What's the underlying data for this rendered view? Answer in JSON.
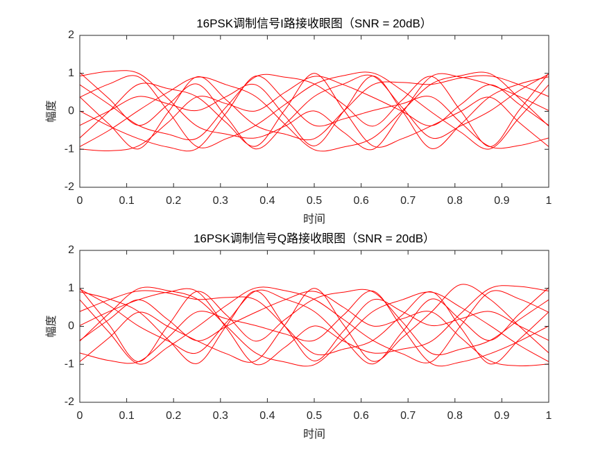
{
  "chart_data": [
    {
      "type": "line",
      "title": "16PSK调制信号I路接收眼图（SNR = 20dB）",
      "xlabel": "时间",
      "ylabel": "幅度",
      "color": "#ff0000",
      "xlim": [
        0,
        1
      ],
      "ylim": [
        -2,
        2
      ],
      "xticks": [
        0,
        0.1,
        0.2,
        0.3,
        0.4,
        0.5,
        0.6,
        0.7,
        0.8,
        0.9,
        1
      ],
      "yticks": [
        -2,
        -1,
        0,
        1,
        2
      ],
      "box": true,
      "x": [
        0,
        0.0625,
        0.125,
        0.1875,
        0.25,
        0.3125,
        0.375,
        0.4375,
        0.5,
        0.5625,
        0.625,
        0.6875,
        0.75,
        0.8125,
        0.875,
        0.9375,
        1
      ],
      "series": [
        {
          "values": [
            1.02,
            0.33,
            -0.37,
            0.17,
            0.72,
            -0.15,
            -0.99,
            -0.34,
            0.39,
            0.72,
            0.93,
            0.1,
            -0.7,
            -0.38,
            0.01,
            0.55,
            0.98
          ]
        },
        {
          "values": [
            -0.93,
            -0.5,
            0.02,
            0.5,
            0.9,
            0.7,
            0.39,
            -0.34,
            -1.01,
            -0.94,
            -0.7,
            0.01,
            0.72,
            0.94,
            0.99,
            0.34,
            -0.39
          ]
        },
        {
          "values": [
            0.37,
            0.72,
            0.91,
            0.02,
            -0.93,
            -0.72,
            -0.37,
            0.18,
            0.71,
            0.94,
            1.01,
            0.55,
            -0.02,
            -0.55,
            -0.99,
            -0.16,
            0.7
          ]
        },
        {
          "values": [
            0.01,
            -0.39,
            -0.72,
            -0.94,
            -0.98,
            -0.04,
            0.93,
            0.3,
            -0.37,
            -0.2,
            0.02,
            0.2,
            0.38,
            -0.3,
            -0.93,
            -0.9,
            -0.7
          ]
        },
        {
          "values": [
            -0.37,
            0.01,
            0.39,
            0.2,
            0.02,
            0.39,
            0.7,
            -0.12,
            -0.91,
            0,
            0.93,
            0.01,
            -0.98,
            -0.34,
            0.39,
            0.72,
            0.91
          ]
        },
        {
          "values": [
            0.93,
            1.05,
            1,
            0.34,
            -0.39,
            -0.6,
            -0.7,
            -0.39,
            0.01,
            -0.55,
            -1,
            -0.04,
            0.92,
            0.9,
            0.7,
            0.39,
            0.02
          ]
        },
        {
          "values": [
            -0.99,
            -1.04,
            -0.91,
            -0.3,
            0.38,
            0.2,
            0.01,
            0.5,
            0.92,
            0.7,
            0.37,
            0,
            -0.38,
            0.18,
            0.7,
            0.18,
            -0.37
          ]
        },
        {
          "values": [
            0.7,
            0.18,
            -0.37,
            -0.6,
            -0.71,
            0.12,
            0.91,
            0.9,
            0.72,
            0.18,
            -0.39,
            0.3,
            0.92,
            0.01,
            -0.93,
            0.04,
            1
          ]
        },
        {
          "values": [
            -0.7,
            0,
            0.71,
            0.6,
            0.38,
            -0.3,
            -0.92,
            0.04,
            1,
            0.04,
            -0.91,
            -0.72,
            -0.38,
            0,
            0.37,
            -0.3,
            -0.93
          ]
        },
        {
          "values": [
            0.38,
            -0.34,
            -0.99,
            -0.04,
            0.91,
            0.3,
            -0.37,
            -0.6,
            -0.72,
            0,
            0.7,
            0.76,
            0.71,
            0.88,
            0.93,
            0.7,
            0.39
          ]
        }
      ]
    },
    {
      "type": "line",
      "title": "16PSK调制信号Q路接收眼图（SNR = 20dB）",
      "xlabel": "时间",
      "ylabel": "幅度",
      "color": "#ff0000",
      "xlim": [
        0,
        1
      ],
      "ylim": [
        -2,
        2
      ],
      "xticks": [
        0,
        0.1,
        0.2,
        0.3,
        0.4,
        0.5,
        0.6,
        0.7,
        0.8,
        0.9,
        1
      ],
      "yticks": [
        -2,
        -1,
        0,
        1,
        2
      ],
      "box": true,
      "x": [
        0,
        0.0625,
        0.125,
        0.1875,
        0.25,
        0.3125,
        0.375,
        0.4375,
        0.5,
        0.5625,
        0.625,
        0.6875,
        0.75,
        0.8125,
        0.875,
        0.9375,
        1
      ],
      "series": [
        {
          "values": [
            0.98,
            0.55,
            0.01,
            -0.38,
            -0.7,
            0.1,
            0.93,
            0.72,
            0.39,
            -0.34,
            -0.99,
            -0.15,
            0.72,
            0.17,
            -0.37,
            0.33,
            1.02
          ]
        },
        {
          "values": [
            -0.39,
            0.34,
            0.99,
            0.94,
            0.72,
            0.01,
            -0.7,
            -0.94,
            -1.01,
            -0.34,
            0.39,
            0.7,
            0.9,
            0.5,
            0.02,
            -0.5,
            -0.93
          ]
        },
        {
          "values": [
            0.7,
            -0.16,
            -0.99,
            -0.55,
            -0.02,
            0.55,
            1.01,
            0.94,
            0.71,
            0.18,
            -0.37,
            -0.72,
            -0.93,
            0.02,
            0.91,
            0.72,
            0.37
          ]
        },
        {
          "values": [
            -0.7,
            -0.9,
            -0.93,
            -0.3,
            0.38,
            0.2,
            0.02,
            -0.2,
            -0.37,
            0.3,
            0.93,
            -0.04,
            -0.98,
            -0.94,
            -0.72,
            -0.39,
            0.01
          ]
        },
        {
          "values": [
            0.91,
            0.72,
            0.39,
            -0.34,
            -0.98,
            0.01,
            0.93,
            0,
            -0.91,
            -0.12,
            0.7,
            0.39,
            0.02,
            0.2,
            0.39,
            0.01,
            -0.37
          ]
        },
        {
          "values": [
            0.02,
            0.39,
            0.7,
            0.9,
            0.92,
            -0.04,
            -1,
            -0.55,
            0.01,
            -0.39,
            -0.7,
            -0.6,
            -0.39,
            0.34,
            1,
            1.05,
            0.93
          ]
        },
        {
          "values": [
            -0.37,
            0.18,
            0.7,
            0.18,
            -0.38,
            0,
            0.37,
            0.7,
            0.92,
            0.5,
            0.01,
            0.2,
            0.38,
            -0.3,
            -0.91,
            -1.04,
            -0.99
          ]
        },
        {
          "values": [
            1,
            0.04,
            -0.93,
            0.01,
            0.92,
            0.3,
            -0.39,
            0.18,
            0.72,
            0.9,
            0.91,
            0.12,
            -0.71,
            -0.6,
            -0.37,
            0.18,
            0.7
          ]
        },
        {
          "values": [
            -0.93,
            -0.3,
            0.37,
            0,
            -0.38,
            -0.72,
            -0.91,
            0.04,
            1,
            0.04,
            -0.92,
            -0.3,
            0.38,
            1.1,
            0.71,
            0,
            -0.7
          ]
        },
        {
          "values": [
            0.39,
            0.7,
            0.93,
            0.88,
            0.71,
            0.76,
            0.7,
            0,
            -0.72,
            -0.6,
            -0.37,
            0.3,
            0.91,
            -0.04,
            -0.99,
            -0.34,
            0.38
          ]
        }
      ]
    }
  ]
}
